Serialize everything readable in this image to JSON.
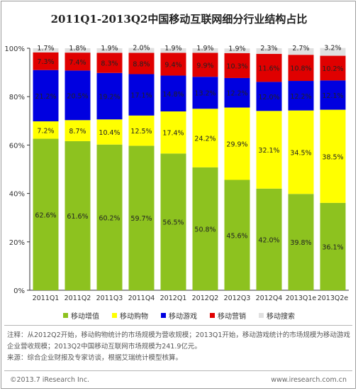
{
  "title": "2011Q1-2013Q2中国移动互联网细分行业结构占比",
  "legend": [
    {
      "label": "移动增值",
      "color": "#8dc21f"
    },
    {
      "label": "移动购物",
      "color": "#ffff00"
    },
    {
      "label": "移动游戏",
      "color": "#0000e0"
    },
    {
      "label": "移动营销",
      "color": "#e00000"
    },
    {
      "label": "移动搜索",
      "color": "#e0e0e0"
    }
  ],
  "note": "注释：从2012Q2开始，移动购物统计的市场规模为营收规模；2013Q1开始，移动游戏统计的市场规模为移动游戏企业营收规模；2013Q2中国移动互联网市场规模为241.9亿元。",
  "source": "来源：综合企业财报及专家访谈，根据艾瑞统计模型核算。",
  "footer_left": "©2013.7 iResearch Inc.",
  "footer_right": "www.iresearch.com.cn",
  "chart_data": {
    "type": "bar",
    "stacked": true,
    "categories": [
      "2011Q1",
      "2011Q2",
      "2011Q3",
      "2011Q4",
      "2012Q1",
      "2012Q2",
      "2012Q3",
      "2012Q4",
      "2013Q1e",
      "2013Q2e"
    ],
    "yticks": [
      "0%",
      "20%",
      "40%",
      "60%",
      "80%",
      "100%"
    ],
    "ylim": [
      0,
      100
    ],
    "series": [
      {
        "name": "移动增值",
        "color": "#8dc21f",
        "values": [
          62.6,
          61.6,
          60.2,
          59.7,
          56.5,
          50.8,
          45.6,
          42.0,
          39.8,
          36.1
        ]
      },
      {
        "name": "移动购物",
        "color": "#ffff00",
        "values": [
          7.2,
          8.7,
          10.4,
          12.5,
          17.4,
          24.2,
          29.9,
          32.1,
          34.5,
          38.5
        ]
      },
      {
        "name": "移动游戏",
        "color": "#0000e0",
        "values": [
          21.2,
          20.5,
          19.2,
          17.1,
          14.8,
          13.2,
          12.2,
          12.0,
          12.2,
          12.1
        ]
      },
      {
        "name": "移动营销",
        "color": "#e00000",
        "values": [
          7.3,
          7.4,
          8.3,
          8.8,
          9.4,
          9.9,
          10.3,
          11.6,
          10.8,
          10.2
        ]
      },
      {
        "name": "移动搜索",
        "color": "#e0e0e0",
        "values": [
          1.7,
          1.8,
          1.9,
          2.0,
          1.9,
          1.9,
          1.9,
          2.3,
          2.7,
          3.2
        ]
      }
    ]
  }
}
